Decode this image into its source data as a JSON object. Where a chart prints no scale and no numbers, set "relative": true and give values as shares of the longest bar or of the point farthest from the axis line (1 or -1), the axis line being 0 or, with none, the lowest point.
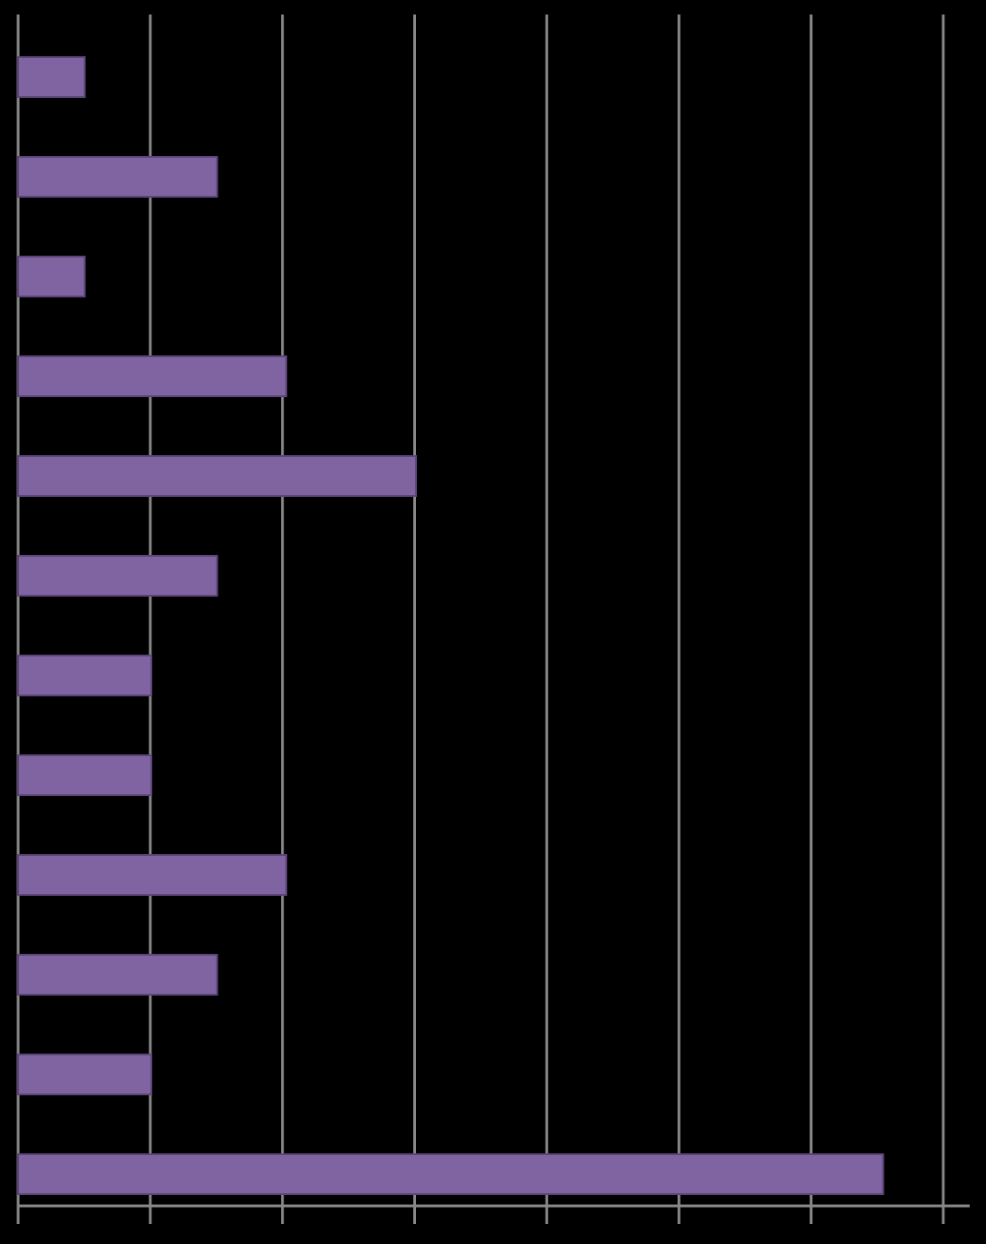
{
  "chart_data": {
    "type": "bar",
    "orientation": "horizontal",
    "relative": true,
    "grid": "x",
    "color": "#8064a2",
    "categories": [
      null,
      null,
      null,
      null,
      null,
      null,
      null,
      null,
      null,
      null,
      null,
      null
    ],
    "values": [
      0.077,
      0.23,
      0.077,
      0.31,
      0.46,
      0.23,
      0.154,
      0.154,
      0.31,
      0.23,
      0.154,
      1
    ]
  }
}
